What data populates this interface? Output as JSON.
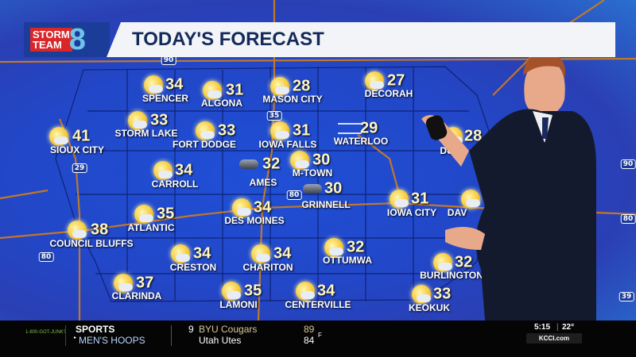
{
  "banner": {
    "logo_line1": "STORM",
    "logo_line2": "TEAM",
    "logo_number": "8",
    "title": "TODAY'S FORECAST"
  },
  "highways": [
    "90",
    "35",
    "29",
    "80",
    "80",
    "90",
    "80",
    "39"
  ],
  "cities": [
    {
      "name": "SPENCER",
      "temp": "34",
      "icon": "partly-sunny"
    },
    {
      "name": "ALGONA",
      "temp": "31",
      "icon": "partly-sunny"
    },
    {
      "name": "MASON CITY",
      "temp": "28",
      "icon": "partly-sunny"
    },
    {
      "name": "DECORAH",
      "temp": "27",
      "icon": "partly-cloudy"
    },
    {
      "name": "SIOUX CITY",
      "temp": "41",
      "icon": "partly-sunny"
    },
    {
      "name": "STORM LAKE",
      "temp": "33",
      "icon": "partly-sunny"
    },
    {
      "name": "FORT DODGE",
      "temp": "33",
      "icon": "partly-sunny"
    },
    {
      "name": "IOWA FALLS",
      "temp": "31",
      "icon": "partly-sunny"
    },
    {
      "name": "WATERLOO",
      "temp": "29",
      "icon": "windy"
    },
    {
      "name": "DU",
      "temp": "28",
      "icon": "partly-sunny"
    },
    {
      "name": "CARROLL",
      "temp": "34",
      "icon": "partly-sunny"
    },
    {
      "name": "AMES",
      "temp": "32",
      "icon": "cloudy"
    },
    {
      "name": "M-TOWN",
      "temp": "30",
      "icon": "partly-sunny"
    },
    {
      "name": "GRINNELL",
      "temp": "30",
      "icon": "cloudy"
    },
    {
      "name": "IOWA CITY",
      "temp": "31",
      "icon": "partly-sunny"
    },
    {
      "name": "DAV",
      "temp": "",
      "icon": "partly-sunny"
    },
    {
      "name": "ATLANTIC",
      "temp": "35",
      "icon": "partly-sunny"
    },
    {
      "name": "DES MOINES",
      "temp": "34",
      "icon": "partly-sunny"
    },
    {
      "name": "COUNCIL BLUFFS",
      "temp": "38",
      "icon": "partly-sunny"
    },
    {
      "name": "CRESTON",
      "temp": "34",
      "icon": "partly-sunny"
    },
    {
      "name": "CHARITON",
      "temp": "34",
      "icon": "partly-sunny"
    },
    {
      "name": "OTTUMWA",
      "temp": "32",
      "icon": "partly-sunny"
    },
    {
      "name": "BURLINGTON",
      "temp": "32",
      "icon": "partly-sunny"
    },
    {
      "name": "CLARINDA",
      "temp": "37",
      "icon": "partly-sunny"
    },
    {
      "name": "LAMONI",
      "temp": "35",
      "icon": "partly-sunny"
    },
    {
      "name": "CENTERVILLE",
      "temp": "34",
      "icon": "partly-sunny"
    },
    {
      "name": "KEOKUK",
      "temp": "33",
      "icon": "partly-sunny"
    }
  ],
  "ticker": {
    "sponsor": "1-800-GOT-JUNK?",
    "category": "SPORTS",
    "subcategory": "MEN'S HOOPS",
    "team1_rank": "9",
    "team1": "BYU Cougars",
    "team1_score": "89",
    "team2": "Utah Utes",
    "team2_score": "84",
    "status": "F",
    "time": "5:15",
    "temp": "22°",
    "site": "KCCI.com"
  }
}
